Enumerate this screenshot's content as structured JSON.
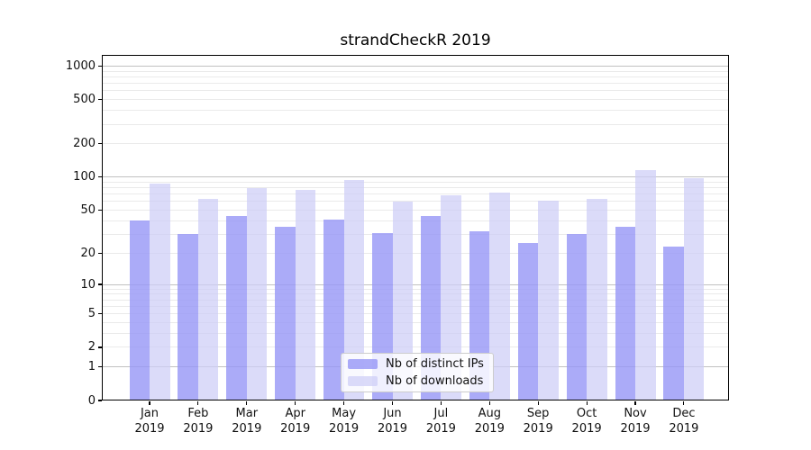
{
  "title": "strandCheckR 2019",
  "chart_data": {
    "type": "bar",
    "title": "strandCheckR 2019",
    "categories": [
      "Jan 2019",
      "Feb 2019",
      "Mar 2019",
      "Apr 2019",
      "May 2019",
      "Jun 2019",
      "Jul 2019",
      "Aug 2019",
      "Sep 2019",
      "Oct 2019",
      "Nov 2019",
      "Dec 2019"
    ],
    "series": [
      {
        "name": "Nb of distinct IPs",
        "color": "rgba(150,150,246,0.8)",
        "values": [
          40,
          30,
          44,
          35,
          41,
          31,
          44,
          32,
          25,
          30,
          35,
          23
        ]
      },
      {
        "name": "Nb of downloads",
        "color": "rgba(205,205,247,0.72)",
        "values": [
          87,
          63,
          80,
          76,
          95,
          60,
          69,
          72,
          61,
          63,
          116,
          98
        ]
      }
    ],
    "xlabel": "",
    "ylabel": "",
    "yscale": "log10(value+1)",
    "ylim": [
      0,
      1300
    ],
    "yticks": [
      0,
      1,
      2,
      5,
      10,
      20,
      50,
      100,
      200,
      500,
      1000
    ],
    "major_grid": [
      1,
      10,
      100,
      1000
    ],
    "minor_grid": [
      2,
      3,
      4,
      5,
      6,
      7,
      8,
      9,
      20,
      30,
      40,
      50,
      60,
      70,
      80,
      90,
      200,
      300,
      400,
      500,
      600,
      700,
      800,
      900
    ],
    "grid": "on",
    "legend_position": "lower center"
  },
  "colors": {
    "bar_distinct_ips": "rgba(150,150,246,0.8)",
    "bar_downloads": "rgba(205,205,247,0.72)",
    "major_grid": "#c1c1c1",
    "minor_grid": "#eaeaea",
    "spine": "#000000",
    "text": "#111111",
    "legend_border": "#cccccc"
  }
}
